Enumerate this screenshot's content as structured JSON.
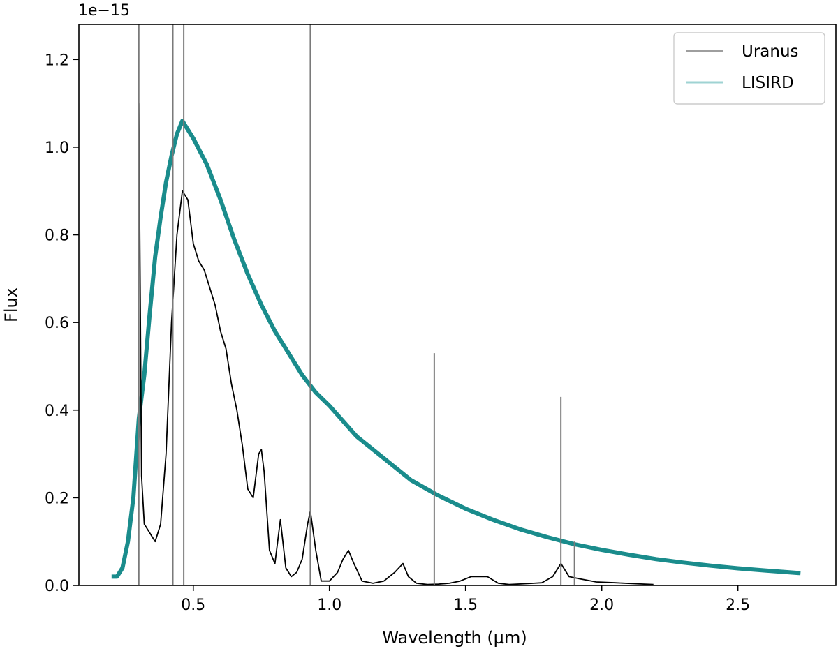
{
  "chart_data": {
    "type": "line",
    "title": "",
    "xlabel": "Wavelength (µm)",
    "ylabel": "Flux",
    "offset_text": "1e−15",
    "xlim": [
      0.08,
      2.86
    ],
    "ylim": [
      0.0,
      1.28
    ],
    "y_scale_note": "values in units of 1e-15",
    "xticks": [
      0.5,
      1.0,
      1.5,
      2.0,
      2.5
    ],
    "xtick_labels": [
      "0.5",
      "1.0",
      "1.5",
      "2.0",
      "2.5"
    ],
    "yticks": [
      0.0,
      0.2,
      0.4,
      0.6,
      0.8,
      1.0,
      1.2
    ],
    "ytick_labels": [
      "0.0",
      "0.2",
      "0.4",
      "0.6",
      "0.8",
      "1.0",
      "1.2"
    ],
    "grid": false,
    "legend_position": "top-right",
    "series": [
      {
        "name": "Uranus",
        "color": "#000000",
        "legend_color": "#9e9e9e",
        "x": [
          0.3,
          0.31,
          0.32,
          0.34,
          0.36,
          0.38,
          0.4,
          0.42,
          0.44,
          0.46,
          0.48,
          0.5,
          0.52,
          0.54,
          0.56,
          0.58,
          0.6,
          0.62,
          0.64,
          0.66,
          0.68,
          0.7,
          0.72,
          0.74,
          0.75,
          0.76,
          0.78,
          0.8,
          0.82,
          0.84,
          0.86,
          0.88,
          0.9,
          0.92,
          0.93,
          0.95,
          0.97,
          1.0,
          1.03,
          1.05,
          1.07,
          1.09,
          1.12,
          1.16,
          1.2,
          1.24,
          1.27,
          1.29,
          1.32,
          1.36,
          1.4,
          1.44,
          1.48,
          1.52,
          1.55,
          1.58,
          1.62,
          1.66,
          1.72,
          1.78,
          1.82,
          1.85,
          1.88,
          1.92,
          1.98,
          2.05,
          2.12,
          2.19
        ],
        "y": [
          1.1,
          0.25,
          0.14,
          0.12,
          0.1,
          0.14,
          0.3,
          0.6,
          0.8,
          0.9,
          0.88,
          0.78,
          0.74,
          0.72,
          0.68,
          0.64,
          0.58,
          0.54,
          0.46,
          0.4,
          0.32,
          0.22,
          0.2,
          0.3,
          0.31,
          0.26,
          0.08,
          0.05,
          0.15,
          0.04,
          0.02,
          0.03,
          0.06,
          0.14,
          0.17,
          0.08,
          0.01,
          0.01,
          0.03,
          0.06,
          0.08,
          0.05,
          0.01,
          0.005,
          0.01,
          0.03,
          0.05,
          0.02,
          0.005,
          0.002,
          0.003,
          0.005,
          0.01,
          0.02,
          0.02,
          0.02,
          0.005,
          0.002,
          0.004,
          0.006,
          0.02,
          0.05,
          0.02,
          0.015,
          0.008,
          0.006,
          0.004,
          0.002
        ]
      },
      {
        "name": "LISIRD",
        "color": "#1a8c8c",
        "legend_color": "#9fd3d3",
        "x": [
          0.2,
          0.22,
          0.24,
          0.26,
          0.28,
          0.3,
          0.32,
          0.34,
          0.36,
          0.38,
          0.4,
          0.42,
          0.44,
          0.46,
          0.48,
          0.5,
          0.55,
          0.6,
          0.65,
          0.7,
          0.75,
          0.8,
          0.85,
          0.9,
          0.95,
          1.0,
          1.1,
          1.2,
          1.3,
          1.4,
          1.5,
          1.6,
          1.7,
          1.8,
          1.9,
          2.0,
          2.1,
          2.2,
          2.3,
          2.4,
          2.5,
          2.6,
          2.73
        ],
        "y": [
          0.02,
          0.02,
          0.04,
          0.1,
          0.2,
          0.38,
          0.48,
          0.62,
          0.75,
          0.84,
          0.92,
          0.98,
          1.03,
          1.06,
          1.04,
          1.02,
          0.96,
          0.88,
          0.79,
          0.71,
          0.64,
          0.58,
          0.53,
          0.48,
          0.44,
          0.41,
          0.34,
          0.29,
          0.24,
          0.205,
          0.175,
          0.15,
          0.128,
          0.11,
          0.094,
          0.081,
          0.07,
          0.06,
          0.052,
          0.045,
          0.039,
          0.034,
          0.028
        ]
      }
    ],
    "spikes": [
      {
        "x": 0.3,
        "y": 1.28
      },
      {
        "x": 0.425,
        "y": 1.28
      },
      {
        "x": 0.465,
        "y": 1.28
      },
      {
        "x": 0.93,
        "y": 1.28
      },
      {
        "x": 1.385,
        "y": 0.53
      },
      {
        "x": 1.85,
        "y": 0.43
      },
      {
        "x": 1.9,
        "y": 0.1
      }
    ]
  }
}
